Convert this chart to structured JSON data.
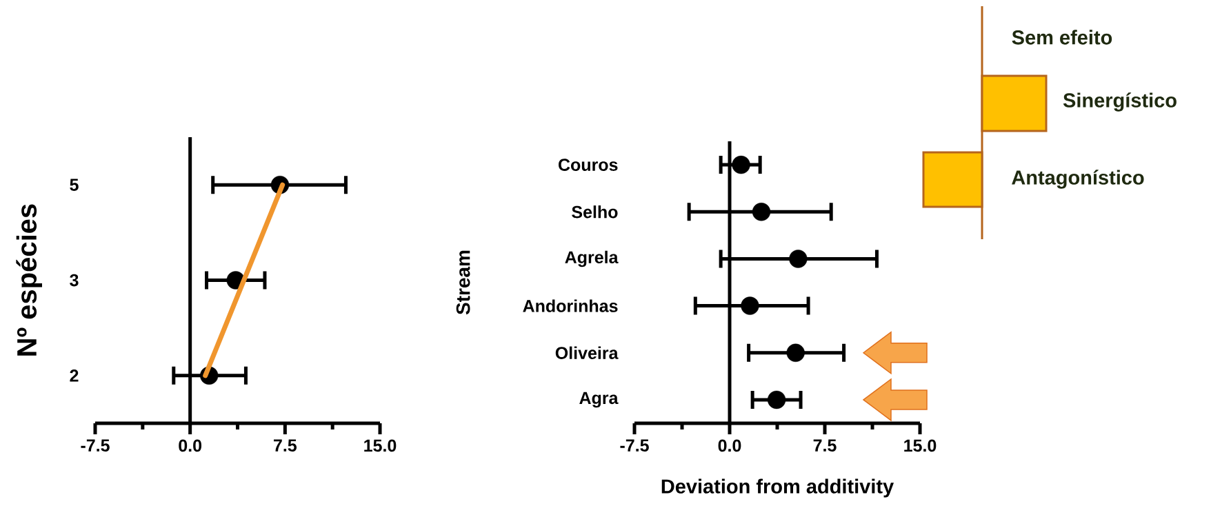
{
  "chart_data": [
    {
      "type": "scatter",
      "orientation": "horizontal",
      "ylabel": "Nº espécies",
      "categories": [
        "5",
        "3",
        "2"
      ],
      "xlim": [
        -7.5,
        15
      ],
      "xticks": [
        {
          "value": -7.5,
          "label": "-7.5"
        },
        {
          "value": 0,
          "label": "0.0"
        },
        {
          "value": 7.5,
          "label": "7.5"
        },
        {
          "value": 15,
          "label": "15.0"
        }
      ],
      "ref_lines": [
        {
          "axis": "x",
          "value": 0,
          "color": "#000000"
        }
      ],
      "series": [
        {
          "type": "scatter",
          "color": "#000000",
          "marker": "circle",
          "values": [
            7.1,
            3.6,
            1.5
          ],
          "errors": [
            [
              1.8,
              12.3
            ],
            [
              1.3,
              5.9
            ],
            [
              -1.3,
              4.4
            ]
          ]
        },
        {
          "type": "line",
          "color": "#f0962e",
          "marker": "none",
          "x": [
            "2",
            "5"
          ],
          "values": [
            1.2,
            7.3
          ]
        }
      ]
    },
    {
      "type": "scatter",
      "orientation": "horizontal",
      "xlabel": "Deviation from additivity",
      "ylabel": "Stream",
      "categories": [
        "Couros",
        "Selho",
        "Agrela",
        "Andorinhas",
        "Oliveira",
        "Agra"
      ],
      "series": [
        {
          "type": "scatter",
          "color": "#000000",
          "marker": "circle",
          "values": [
            0.9,
            2.5,
            5.4,
            1.6,
            5.2,
            3.7
          ],
          "errors": [
            [
              -0.7,
              2.4
            ],
            [
              -3.2,
              8.0
            ],
            [
              -0.7,
              11.6
            ],
            [
              -2.7,
              6.2
            ],
            [
              1.5,
              9.0
            ],
            [
              1.8,
              5.6
            ]
          ]
        }
      ],
      "xlim": [
        -7.5,
        15
      ],
      "xticks": [
        {
          "value": -7.5,
          "label": "-7.5"
        },
        {
          "value": 0,
          "label": "0.0"
        },
        {
          "value": 7.5,
          "label": "7.5"
        },
        {
          "value": 15,
          "label": "15.0"
        }
      ],
      "ref_lines": [
        {
          "axis": "x",
          "value": 0,
          "color": "#000000"
        }
      ]
    },
    {
      "type": "other",
      "annotations": [
        "Sem efeito",
        "Sinergístico",
        "Antagonístico"
      ]
    }
  ]
}
